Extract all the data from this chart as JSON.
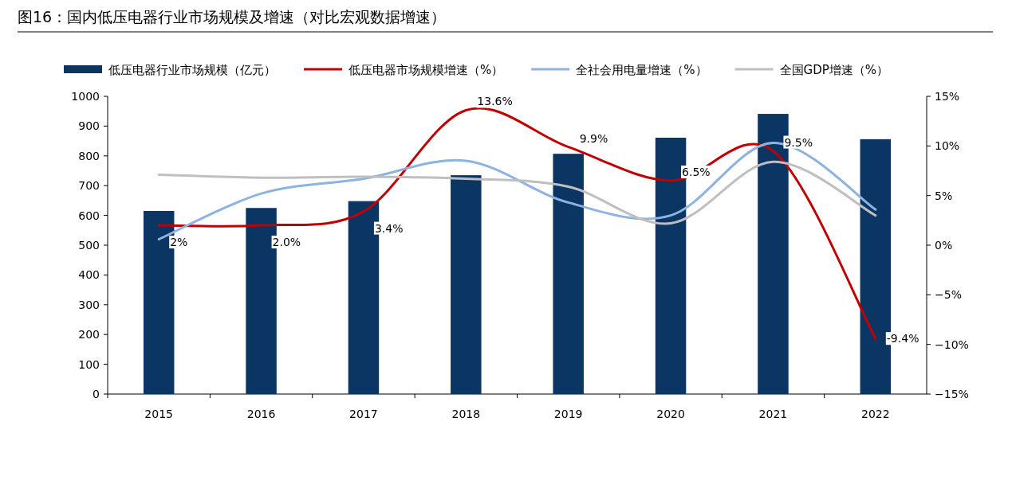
{
  "chart_data": {
    "type": "bar",
    "title": "图16：国内低压电器行业市场规模及增速（对比宏观数据增速）",
    "categories": [
      "2015",
      "2016",
      "2017",
      "2018",
      "2019",
      "2020",
      "2021",
      "2022"
    ],
    "series": [
      {
        "name": "低压电器行业市场规模（亿元）",
        "color": "#0b3563",
        "values": [
          615,
          625,
          648,
          735,
          807,
          861,
          941,
          856
        ]
      },
      {
        "name": "低压电器市场规模增速（%）",
        "type": "line",
        "axis": "y2",
        "color": "#c00000",
        "values": [
          2.0,
          2.0,
          3.4,
          13.6,
          9.9,
          6.5,
          9.5,
          -9.4
        ],
        "value_labels": [
          "2%",
          "2.0%",
          "3.4%",
          "13.6%",
          "9.9%",
          "6.5%",
          "9.5%",
          "-9.4%"
        ]
      },
      {
        "name": "全社会用电量增速（%）",
        "type": "line",
        "axis": "y2",
        "color": "#8db3e2",
        "values": [
          0.6,
          5.2,
          6.7,
          8.5,
          4.3,
          3.0,
          10.3,
          3.6
        ]
      },
      {
        "name": "全国GDP增速（%）",
        "type": "line",
        "axis": "y2",
        "color": "#bfbfbf",
        "values": [
          7.1,
          6.8,
          6.9,
          6.7,
          5.9,
          2.2,
          8.4,
          3.0
        ]
      }
    ],
    "ylim": [
      0,
      1000
    ],
    "yticks": [
      0,
      100,
      200,
      300,
      400,
      500,
      600,
      700,
      800,
      900,
      1000
    ],
    "y2lim": [
      -15,
      15
    ],
    "y2ticks": [
      {
        "value": -15,
        "label": "−15%"
      },
      {
        "value": -10,
        "label": "−10%"
      },
      {
        "value": -5,
        "label": "−5%"
      },
      {
        "value": 0,
        "label": "0%"
      },
      {
        "value": 5,
        "label": "5%"
      },
      {
        "value": 10,
        "label": "10%"
      },
      {
        "value": 15,
        "label": "15%"
      }
    ],
    "legend": "top",
    "grid": false
  }
}
